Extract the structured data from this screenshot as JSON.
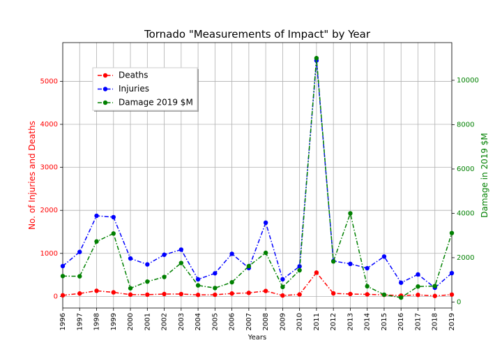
{
  "chart_data": {
    "type": "line",
    "title": "Tornado \"Measurements of Impact\" by Year",
    "xlabel": "Years",
    "ylabel_left": "No. of Injuries and Deaths",
    "ylabel_right": "Damage in 2019 $M",
    "grid": true,
    "legend_position": "upper-left",
    "x": [
      "1996",
      "1997",
      "1998",
      "1999",
      "2000",
      "2001",
      "2002",
      "2003",
      "2004",
      "2005",
      "2006",
      "2007",
      "2008",
      "2009",
      "2010",
      "2011",
      "2012",
      "2013",
      "2014",
      "2015",
      "2016",
      "2017",
      "2018",
      "2019"
    ],
    "xlim": [
      1996,
      2019
    ],
    "ylim_left": [
      -270,
      5900
    ],
    "ylim_right": [
      -270,
      11700
    ],
    "left_ticks": [
      0,
      1000,
      2000,
      3000,
      4000,
      5000
    ],
    "right_ticks": [
      0,
      2000,
      4000,
      6000,
      8000,
      10000
    ],
    "series": [
      {
        "name": "Deaths",
        "axis": "left",
        "color": "#ff0000",
        "line_style": "dashdot",
        "values": [
          25,
          67,
          130,
          94,
          41,
          40,
          55,
          54,
          35,
          38,
          67,
          81,
          126,
          21,
          45,
          553,
          70,
          55,
          47,
          36,
          18,
          35,
          10,
          42
        ]
      },
      {
        "name": "Injuries",
        "axis": "left",
        "color": "#0000ff",
        "line_style": "dashdot",
        "values": [
          705,
          1033,
          1874,
          1842,
          882,
          743,
          968,
          1087,
          396,
          537,
          990,
          659,
          1714,
          397,
          699,
          5483,
          822,
          756,
          655,
          927,
          318,
          510,
          201,
          541
        ]
      },
      {
        "name": "Damage 2019 $M",
        "axis": "right",
        "color": "#008000",
        "line_style": "dashdot",
        "values": [
          1170,
          1160,
          2730,
          3090,
          620,
          920,
          1130,
          1760,
          750,
          630,
          890,
          1620,
          2220,
          680,
          1430,
          11000,
          1830,
          4000,
          710,
          330,
          200,
          700,
          720,
          3110
        ]
      }
    ]
  }
}
